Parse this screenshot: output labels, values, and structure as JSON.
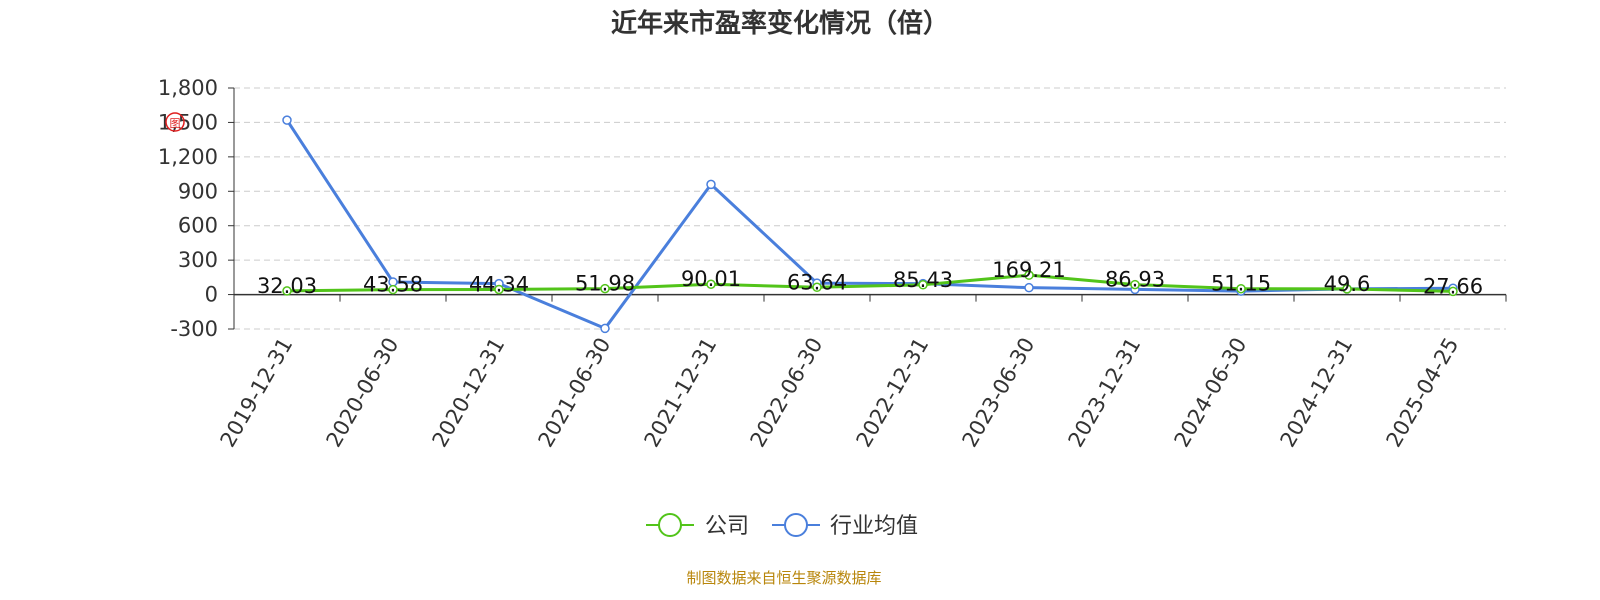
{
  "chart_data": {
    "type": "line",
    "title": "近年来市盈率变化情况（倍）",
    "categories": [
      "2019-12-31",
      "2020-06-30",
      "2020-12-31",
      "2021-06-30",
      "2021-12-31",
      "2022-06-30",
      "2022-12-31",
      "2023-06-30",
      "2023-12-31",
      "2024-06-30",
      "2024-12-31",
      "2025-04-25"
    ],
    "series": [
      {
        "name": "公司",
        "color": "#52c41a",
        "values": [
          32.03,
          43.58,
          44.34,
          51.98,
          90.01,
          63.64,
          85.43,
          169.21,
          86.93,
          51.15,
          49.6,
          27.66
        ],
        "labels": [
          "32.03",
          "43.58",
          "44.34",
          "51.98",
          "90.01",
          "63.64",
          "85.43",
          "169.21",
          "86.93",
          "51.15",
          "49.6",
          "27.66"
        ]
      },
      {
        "name": "行业均值",
        "color": "#4a7fdc",
        "values": [
          1520,
          110,
          95,
          -295,
          960,
          100,
          95,
          60,
          45,
          30,
          50,
          55
        ]
      }
    ],
    "yticks": [
      "-300",
      "0",
      "300",
      "600",
      "900",
      "1,200",
      "1,500",
      "1,800"
    ],
    "ylim": [
      -300,
      1800
    ],
    "grid": true,
    "legend_position": "bottom-center",
    "source": "制图数据来自恒生聚源数据库",
    "watermark": "图"
  }
}
